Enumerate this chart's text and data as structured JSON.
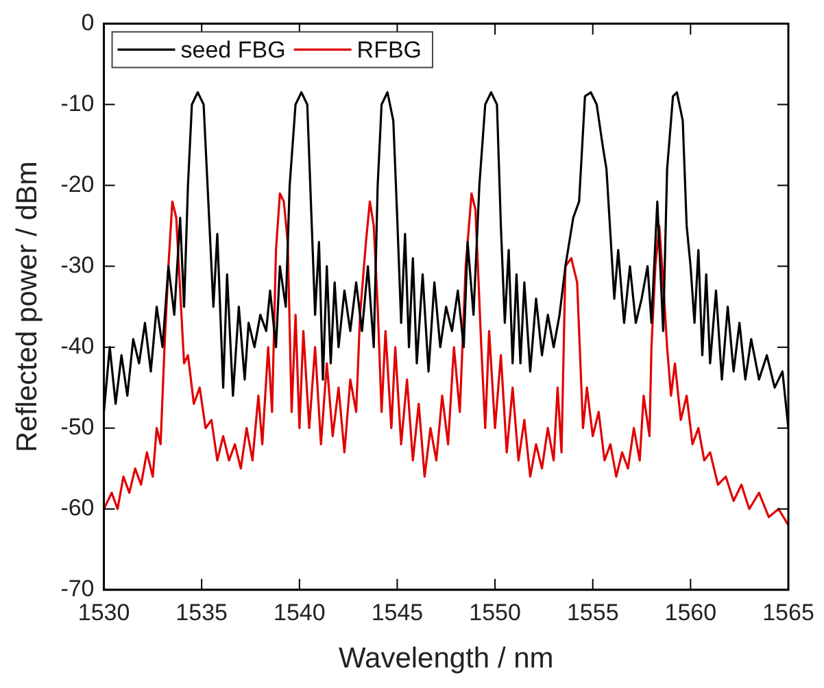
{
  "chart_data": {
    "type": "line",
    "xlabel": "Wavelength / nm",
    "ylabel": "Reflected power / dBm",
    "xlim": [
      1530,
      1565
    ],
    "xticks": [
      1530,
      1535,
      1540,
      1545,
      1550,
      1555,
      1560,
      1565
    ],
    "ylim": [
      -70,
      0
    ],
    "yticks": [
      -70,
      -60,
      -50,
      -40,
      -30,
      -20,
      -10,
      0
    ],
    "grid": false,
    "legend": "top left",
    "marker": "none",
    "line_style": "solid",
    "series": [
      {
        "name": "seed FBG",
        "color": "#000000",
        "x": [
          1530,
          1530.3,
          1530.6,
          1530.9,
          1531.2,
          1531.5,
          1531.8,
          1532.1,
          1532.4,
          1532.7,
          1533.0,
          1533.3,
          1533.6,
          1533.9,
          1534.1,
          1534.3,
          1534.5,
          1534.8,
          1535.1,
          1535.4,
          1535.6,
          1535.8,
          1536.1,
          1536.3,
          1536.6,
          1536.9,
          1537.2,
          1537.4,
          1537.7,
          1538.0,
          1538.3,
          1538.5,
          1538.8,
          1539.0,
          1539.3,
          1539.5,
          1539.8,
          1540.1,
          1540.4,
          1540.6,
          1540.8,
          1541.0,
          1541.2,
          1541.4,
          1541.6,
          1541.8,
          1542.0,
          1542.3,
          1542.6,
          1542.9,
          1543.2,
          1543.5,
          1543.8,
          1544.0,
          1544.2,
          1544.5,
          1544.8,
          1545.0,
          1545.2,
          1545.4,
          1545.6,
          1545.8,
          1546.0,
          1546.3,
          1546.6,
          1546.9,
          1547.2,
          1547.5,
          1547.8,
          1548.1,
          1548.4,
          1548.6,
          1548.9,
          1549.2,
          1549.5,
          1549.8,
          1550.1,
          1550.3,
          1550.5,
          1550.7,
          1550.9,
          1551.1,
          1551.3,
          1551.5,
          1551.8,
          1552.1,
          1552.4,
          1552.7,
          1553.0,
          1553.3,
          1553.6,
          1554.0,
          1554.3,
          1554.6,
          1554.9,
          1555.2,
          1555.5,
          1555.7,
          1555.9,
          1556.1,
          1556.3,
          1556.6,
          1556.9,
          1557.2,
          1557.5,
          1557.8,
          1558.0,
          1558.3,
          1558.6,
          1558.8,
          1559.1,
          1559.3,
          1559.6,
          1559.8,
          1560.0,
          1560.2,
          1560.4,
          1560.6,
          1560.8,
          1561.0,
          1561.3,
          1561.6,
          1561.9,
          1562.2,
          1562.5,
          1562.8,
          1563.1,
          1563.5,
          1563.9,
          1564.3,
          1564.7,
          1565
        ],
        "values": [
          -48,
          -40,
          -47,
          -41,
          -46,
          -39,
          -42,
          -37,
          -43,
          -35,
          -40,
          -30,
          -36,
          -24,
          -35,
          -20,
          -10,
          -8.5,
          -10,
          -25,
          -35,
          -26,
          -45,
          -31,
          -46,
          -35,
          -44,
          -37,
          -40,
          -36,
          -38,
          -33,
          -40,
          -30,
          -35,
          -20,
          -10,
          -8.5,
          -10,
          -23,
          -36,
          -27,
          -44,
          -30,
          -42,
          -32,
          -40,
          -33,
          -38,
          -32,
          -38,
          -30,
          -40,
          -20,
          -10,
          -8.5,
          -12,
          -24,
          -37,
          -26,
          -40,
          -29,
          -42,
          -31,
          -43,
          -32,
          -40,
          -35,
          -38,
          -33,
          -40,
          -27,
          -36,
          -20,
          -10,
          -8.5,
          -10,
          -25,
          -37,
          -28,
          -42,
          -31,
          -42,
          -32,
          -43,
          -34,
          -41,
          -36,
          -40,
          -36,
          -30,
          -24,
          -22,
          -9,
          -8.5,
          -10,
          -15,
          -18,
          -26,
          -34,
          -28,
          -37,
          -30,
          -37,
          -34,
          -30,
          -37,
          -22,
          -38,
          -18,
          -9,
          -8.5,
          -12,
          -25,
          -30,
          -37,
          -28,
          -41,
          -31,
          -42,
          -33,
          -44,
          -35,
          -43,
          -37,
          -44,
          -39,
          -44,
          -41,
          -45,
          -43,
          -50
        ]
      },
      {
        "name": "RFBG",
        "color": "#e00000",
        "x": [
          1530,
          1530.4,
          1530.7,
          1531.0,
          1531.3,
          1531.6,
          1531.9,
          1532.2,
          1532.5,
          1532.7,
          1532.9,
          1533.1,
          1533.3,
          1533.5,
          1533.7,
          1533.9,
          1534.1,
          1534.3,
          1534.6,
          1534.9,
          1535.2,
          1535.5,
          1535.8,
          1536.1,
          1536.4,
          1536.7,
          1537.0,
          1537.3,
          1537.6,
          1537.9,
          1538.1,
          1538.4,
          1538.6,
          1538.8,
          1539.0,
          1539.2,
          1539.4,
          1539.6,
          1539.8,
          1540.0,
          1540.2,
          1540.5,
          1540.8,
          1541.1,
          1541.4,
          1541.7,
          1542.0,
          1542.3,
          1542.6,
          1542.9,
          1543.1,
          1543.4,
          1543.6,
          1543.8,
          1544.0,
          1544.2,
          1544.4,
          1544.7,
          1544.9,
          1545.2,
          1545.5,
          1545.8,
          1546.1,
          1546.4,
          1546.7,
          1547.0,
          1547.3,
          1547.6,
          1547.9,
          1548.2,
          1548.5,
          1548.8,
          1549.0,
          1549.3,
          1549.5,
          1549.7,
          1550.0,
          1550.3,
          1550.6,
          1550.9,
          1551.2,
          1551.5,
          1551.8,
          1552.1,
          1552.4,
          1552.7,
          1553.0,
          1553.2,
          1553.4,
          1553.6,
          1553.9,
          1554.2,
          1554.5,
          1554.7,
          1555.0,
          1555.3,
          1555.6,
          1555.9,
          1556.2,
          1556.5,
          1556.8,
          1557.1,
          1557.4,
          1557.6,
          1557.9,
          1558.0,
          1558.2,
          1558.4,
          1558.6,
          1558.8,
          1559.0,
          1559.2,
          1559.5,
          1559.8,
          1560.1,
          1560.4,
          1560.7,
          1561.0,
          1561.4,
          1561.8,
          1562.2,
          1562.6,
          1563.0,
          1563.5,
          1564.0,
          1564.5,
          1565
        ],
        "values": [
          -60,
          -58,
          -60,
          -56,
          -58,
          -55,
          -57,
          -53,
          -56,
          -50,
          -52,
          -40,
          -30,
          -22,
          -24,
          -33,
          -42,
          -41,
          -47,
          -45,
          -50,
          -49,
          -54,
          -51,
          -54,
          -52,
          -55,
          -50,
          -54,
          -46,
          -52,
          -40,
          -48,
          -28,
          -21,
          -22,
          -27,
          -48,
          -36,
          -50,
          -38,
          -50,
          -40,
          -52,
          -42,
          -51,
          -45,
          -53,
          -44,
          -48,
          -36,
          -27,
          -22,
          -25,
          -35,
          -48,
          -38,
          -50,
          -40,
          -52,
          -44,
          -54,
          -47,
          -56,
          -50,
          -54,
          -46,
          -52,
          -40,
          -48,
          -30,
          -21,
          -23,
          -40,
          -50,
          -38,
          -50,
          -41,
          -53,
          -45,
          -54,
          -49,
          -56,
          -52,
          -55,
          -50,
          -54,
          -45,
          -53,
          -30,
          -29,
          -32,
          -50,
          -45,
          -51,
          -48,
          -54,
          -52,
          -56,
          -53,
          -55,
          -50,
          -54,
          -46,
          -51,
          -40,
          -30,
          -25,
          -32,
          -40,
          -46,
          -42,
          -49,
          -46,
          -52,
          -50,
          -54,
          -53,
          -57,
          -56,
          -59,
          -57,
          -60,
          -58,
          -61,
          -60,
          -62
        ]
      }
    ]
  }
}
